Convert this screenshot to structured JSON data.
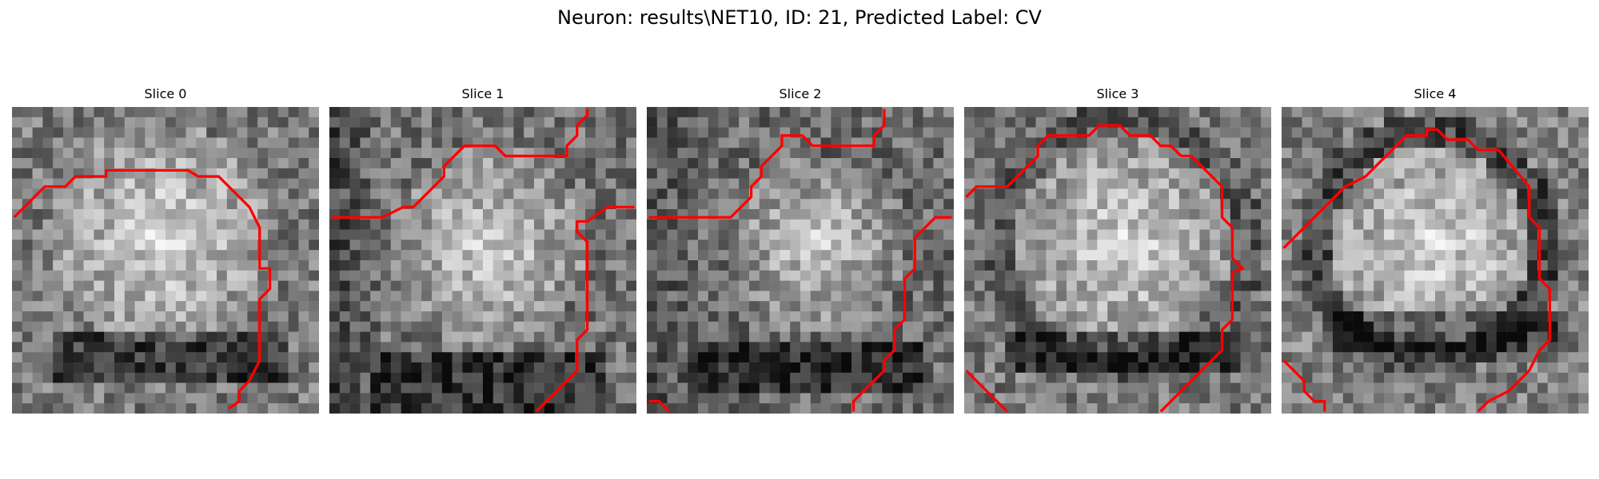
{
  "title": "Neuron: results\\NET10, ID: 21, Predicted Label: CV",
  "panels": [
    {
      "title": "Slice 0",
      "image_description": "grayscale 30x30 pixel microscopy tile, bright rounded region center, dark band near bottom",
      "contour_color": "#ff0000"
    },
    {
      "title": "Slice 1",
      "image_description": "grayscale 30x30 pixel microscopy tile, darker left column, dark blob lower center",
      "contour_color": "#ff0000"
    },
    {
      "title": "Slice 2",
      "image_description": "grayscale 30x30 pixel microscopy tile, mixed texture, dark patches lower half",
      "contour_color": "#ff0000"
    },
    {
      "title": "Slice 3",
      "image_description": "grayscale 30x30 pixel microscopy tile, bright rounded cell body, dark band lower center",
      "contour_color": "#ff0000"
    },
    {
      "title": "Slice 4",
      "image_description": "grayscale 30x30 pixel microscopy tile, bright rounded cell body with dark ring, dark band lower center",
      "contour_color": "#ff0000"
    }
  ]
}
